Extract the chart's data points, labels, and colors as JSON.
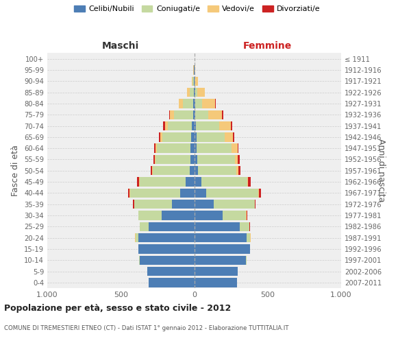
{
  "age_groups": [
    "0-4",
    "5-9",
    "10-14",
    "15-19",
    "20-24",
    "25-29",
    "30-34",
    "35-39",
    "40-44",
    "45-49",
    "50-54",
    "55-59",
    "60-64",
    "65-69",
    "70-74",
    "75-79",
    "80-84",
    "85-89",
    "90-94",
    "95-99",
    "100+"
  ],
  "birth_years": [
    "2007-2011",
    "2002-2006",
    "1997-2001",
    "1992-1996",
    "1987-1991",
    "1982-1986",
    "1977-1981",
    "1972-1976",
    "1967-1971",
    "1962-1966",
    "1957-1961",
    "1952-1956",
    "1947-1951",
    "1942-1946",
    "1937-1941",
    "1932-1936",
    "1927-1931",
    "1922-1926",
    "1917-1921",
    "1912-1916",
    "≤ 1911"
  ],
  "males": {
    "celibi": [
      310,
      320,
      370,
      380,
      380,
      310,
      220,
      150,
      95,
      60,
      30,
      25,
      25,
      20,
      15,
      8,
      5,
      4,
      2,
      1,
      0
    ],
    "coniugati": [
      0,
      0,
      5,
      2,
      20,
      60,
      160,
      260,
      340,
      310,
      250,
      240,
      230,
      195,
      165,
      130,
      70,
      28,
      8,
      2,
      0
    ],
    "vedovi": [
      0,
      0,
      0,
      0,
      4,
      0,
      0,
      0,
      5,
      5,
      5,
      5,
      9,
      14,
      18,
      28,
      32,
      18,
      5,
      2,
      0
    ],
    "divorziati": [
      0,
      0,
      0,
      0,
      0,
      0,
      2,
      5,
      10,
      14,
      9,
      9,
      9,
      9,
      14,
      5,
      0,
      0,
      0,
      0,
      0
    ]
  },
  "females": {
    "nubili": [
      292,
      298,
      352,
      378,
      358,
      308,
      192,
      132,
      82,
      48,
      25,
      20,
      18,
      14,
      10,
      8,
      5,
      5,
      3,
      2,
      0
    ],
    "coniugate": [
      0,
      0,
      5,
      4,
      22,
      68,
      162,
      282,
      352,
      312,
      262,
      258,
      238,
      192,
      158,
      88,
      48,
      14,
      5,
      0,
      0
    ],
    "vedove": [
      0,
      0,
      0,
      0,
      4,
      0,
      4,
      0,
      5,
      5,
      14,
      18,
      38,
      58,
      82,
      92,
      88,
      52,
      18,
      5,
      0
    ],
    "divorziate": [
      0,
      0,
      0,
      0,
      0,
      2,
      2,
      5,
      14,
      18,
      14,
      14,
      9,
      9,
      9,
      9,
      5,
      0,
      0,
      0,
      0
    ]
  },
  "colors": {
    "celibi": "#4d7eb5",
    "coniugati": "#c5d9a0",
    "vedovi": "#f5c97a",
    "divorziati": "#cc2222"
  },
  "legend_labels": [
    "Celibi/Nubili",
    "Coniugati/e",
    "Vedovi/e",
    "Divorziati/e"
  ],
  "title": "Popolazione per età, sesso e stato civile - 2012",
  "subtitle": "COMUNE DI TREMESTIERI ETNEO (CT) - Dati ISTAT 1° gennaio 2012 - Elaborazione TUTTITALIA.IT",
  "xlabel_left": "Maschi",
  "xlabel_right": "Femmine",
  "ylabel_left": "Fasce di età",
  "ylabel_right": "Anni di nascita",
  "xlim": 1000,
  "bg_color": "#ffffff",
  "plot_bg_color": "#efefef"
}
